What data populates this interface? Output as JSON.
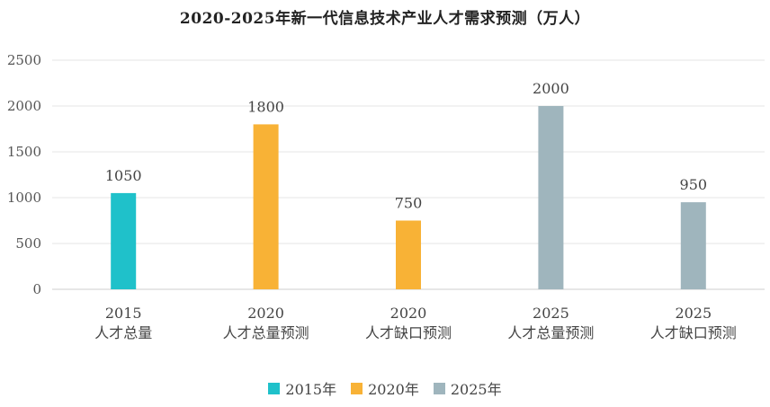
{
  "chart_data": {
    "type": "bar",
    "title": "2020-2025年新一代信息技术产业人才需求预测（万人）",
    "categories": [
      [
        "2015",
        "人才总量"
      ],
      [
        "2020",
        "人才总量预测"
      ],
      [
        "2020",
        "人才缺口预测"
      ],
      [
        "2025",
        "人才总量预测"
      ],
      [
        "2025",
        "人才缺口预测"
      ]
    ],
    "series": [
      {
        "name": "2015年",
        "color": "#1fc1ca",
        "values": [
          1050,
          null,
          null,
          null,
          null
        ]
      },
      {
        "name": "2020年",
        "color": "#f8b236",
        "values": [
          null,
          1800,
          750,
          null,
          null
        ]
      },
      {
        "name": "2025年",
        "color": "#9fb5bd",
        "values": [
          null,
          null,
          null,
          2000,
          950
        ]
      }
    ],
    "ylim": [
      0,
      2500
    ],
    "yticks": [
      0,
      500,
      1000,
      1500,
      2000,
      2500
    ],
    "grid": true,
    "legend_position": "bottom"
  }
}
